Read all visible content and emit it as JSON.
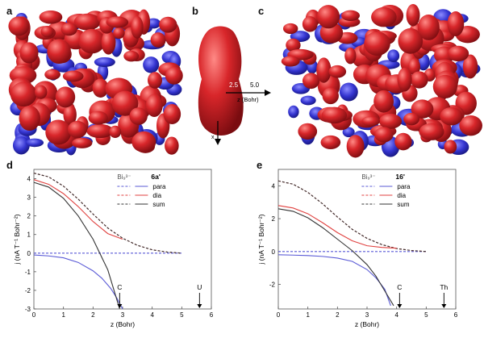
{
  "panel_letters": {
    "a": "a",
    "b": "b",
    "c": "c",
    "d": "d",
    "e": "e"
  },
  "colors": {
    "positive_isosurface": "#d8262a",
    "negative_isosurface": "#3a3ad6",
    "para": "#5a5ad6",
    "dia": "#e0413f",
    "sum": "#333333"
  },
  "panel_b": {
    "tick_2_5": "2.5",
    "tick_5_0": "5.0",
    "z_axis_label": "z (Bohr)",
    "x_axis_label": "x"
  },
  "chart_data": [
    {
      "type": "line",
      "panel": "d",
      "xlabel": "z (Bohr)",
      "ylabel": "j (nA T⁻¹ Bohr⁻²)",
      "xlim": [
        0,
        6
      ],
      "ylim": [
        -3,
        4.5
      ],
      "x_ticks": [
        "0",
        "1",
        "2",
        "3",
        "4",
        "5",
        "6"
      ],
      "y_ticks": [
        "-3",
        "-2",
        "-1",
        "0",
        "1",
        "2",
        "3",
        "4"
      ],
      "legend_group_1": "Bi₉³⁻",
      "legend_group_2": "6a'",
      "legend_items": [
        "para",
        "dia",
        "sum"
      ],
      "annotations": [
        {
          "text": "C",
          "x": 2.9
        },
        {
          "text": "U",
          "x": 5.6
        }
      ],
      "series": [
        {
          "name": "para",
          "group": "Bi₉³⁻",
          "style": "dashed",
          "color": "#5a5ad6",
          "x": [
            0,
            5
          ],
          "y": [
            0,
            0
          ]
        },
        {
          "name": "dia",
          "group": "Bi₉³⁻",
          "style": "dashed",
          "color": "#e0413f",
          "x": [
            0,
            0.5,
            1,
            1.5,
            2,
            2.5,
            3,
            3.5,
            4,
            4.5,
            5
          ],
          "y": [
            4.3,
            4.1,
            3.6,
            2.9,
            2.1,
            1.35,
            0.8,
            0.42,
            0.18,
            0.06,
            0
          ]
        },
        {
          "name": "sum",
          "group": "Bi₉³⁻",
          "style": "dashed",
          "color": "#333333",
          "x": [
            0,
            0.5,
            1,
            1.5,
            2,
            2.5,
            3,
            3.5,
            4,
            4.5,
            5
          ],
          "y": [
            4.3,
            4.1,
            3.6,
            2.9,
            2.1,
            1.35,
            0.8,
            0.42,
            0.18,
            0.06,
            0
          ]
        },
        {
          "name": "para",
          "group": "6a'",
          "style": "solid",
          "color": "#5a5ad6",
          "x": [
            0,
            0.5,
            1,
            1.5,
            2,
            2.3,
            2.6,
            2.8,
            3.0
          ],
          "y": [
            -0.1,
            -0.15,
            -0.25,
            -0.5,
            -0.95,
            -1.35,
            -1.9,
            -2.4,
            -3.0
          ]
        },
        {
          "name": "dia",
          "group": "6a'",
          "style": "solid",
          "color": "#e0413f",
          "x": [
            0,
            0.5,
            1,
            1.5,
            2,
            2.5,
            3
          ],
          "y": [
            3.95,
            3.7,
            3.2,
            2.5,
            1.7,
            1.05,
            0.75
          ]
        },
        {
          "name": "sum",
          "group": "6a'",
          "style": "solid",
          "color": "#333333",
          "x": [
            0,
            0.5,
            1,
            1.5,
            2,
            2.5,
            2.9
          ],
          "y": [
            3.8,
            3.55,
            2.95,
            2.0,
            0.75,
            -0.9,
            -3.0
          ]
        }
      ]
    },
    {
      "type": "line",
      "panel": "e",
      "xlabel": "z (Bohr)",
      "ylabel": "j (nA T⁻¹ Bohr⁻²)",
      "xlim": [
        0,
        6
      ],
      "ylim": [
        -3.5,
        5
      ],
      "x_ticks": [
        "0",
        "1",
        "2",
        "3",
        "4",
        "5",
        "6"
      ],
      "y_ticks": [
        "-2",
        "0",
        "2",
        "4"
      ],
      "legend_group_1": "Bi₉³⁻",
      "legend_group_2": "16'",
      "legend_items": [
        "para",
        "dia",
        "sum"
      ],
      "annotations": [
        {
          "text": "C",
          "x": 4.1
        },
        {
          "text": "Th",
          "x": 5.6
        }
      ],
      "series": [
        {
          "name": "para",
          "group": "Bi₉³⁻",
          "style": "dashed",
          "color": "#5a5ad6",
          "x": [
            0,
            5
          ],
          "y": [
            0,
            0
          ]
        },
        {
          "name": "dia",
          "group": "Bi₉³⁻",
          "style": "dashed",
          "color": "#e0413f",
          "x": [
            0,
            0.5,
            1,
            1.5,
            2,
            2.5,
            3,
            3.5,
            4,
            4.5,
            5
          ],
          "y": [
            4.3,
            4.1,
            3.6,
            2.9,
            2.1,
            1.35,
            0.8,
            0.42,
            0.18,
            0.06,
            0
          ]
        },
        {
          "name": "sum",
          "group": "Bi₉³⁻",
          "style": "dashed",
          "color": "#333333",
          "x": [
            0,
            0.5,
            1,
            1.5,
            2,
            2.5,
            3,
            3.5,
            4,
            4.5,
            5
          ],
          "y": [
            4.3,
            4.1,
            3.6,
            2.9,
            2.1,
            1.35,
            0.8,
            0.42,
            0.18,
            0.06,
            0
          ]
        },
        {
          "name": "para",
          "group": "16'",
          "style": "solid",
          "color": "#5a5ad6",
          "x": [
            0,
            0.5,
            1,
            1.5,
            2,
            2.5,
            3,
            3.3,
            3.6,
            3.8
          ],
          "y": [
            -0.2,
            -0.22,
            -0.25,
            -0.3,
            -0.4,
            -0.6,
            -1.1,
            -1.6,
            -2.3,
            -3.3
          ]
        },
        {
          "name": "dia",
          "group": "16'",
          "style": "solid",
          "color": "#e0413f",
          "x": [
            0,
            0.5,
            1,
            1.5,
            2,
            2.5,
            3,
            3.5,
            4
          ],
          "y": [
            2.8,
            2.65,
            2.3,
            1.75,
            1.15,
            0.65,
            0.35,
            0.25,
            0.2
          ]
        },
        {
          "name": "sum",
          "group": "16'",
          "style": "solid",
          "color": "#333333",
          "x": [
            0,
            0.5,
            1,
            1.5,
            2,
            2.5,
            3,
            3.3,
            3.6,
            3.9
          ],
          "y": [
            2.6,
            2.45,
            2.05,
            1.45,
            0.75,
            0.05,
            -0.8,
            -1.5,
            -2.4,
            -3.3
          ]
        }
      ]
    }
  ]
}
